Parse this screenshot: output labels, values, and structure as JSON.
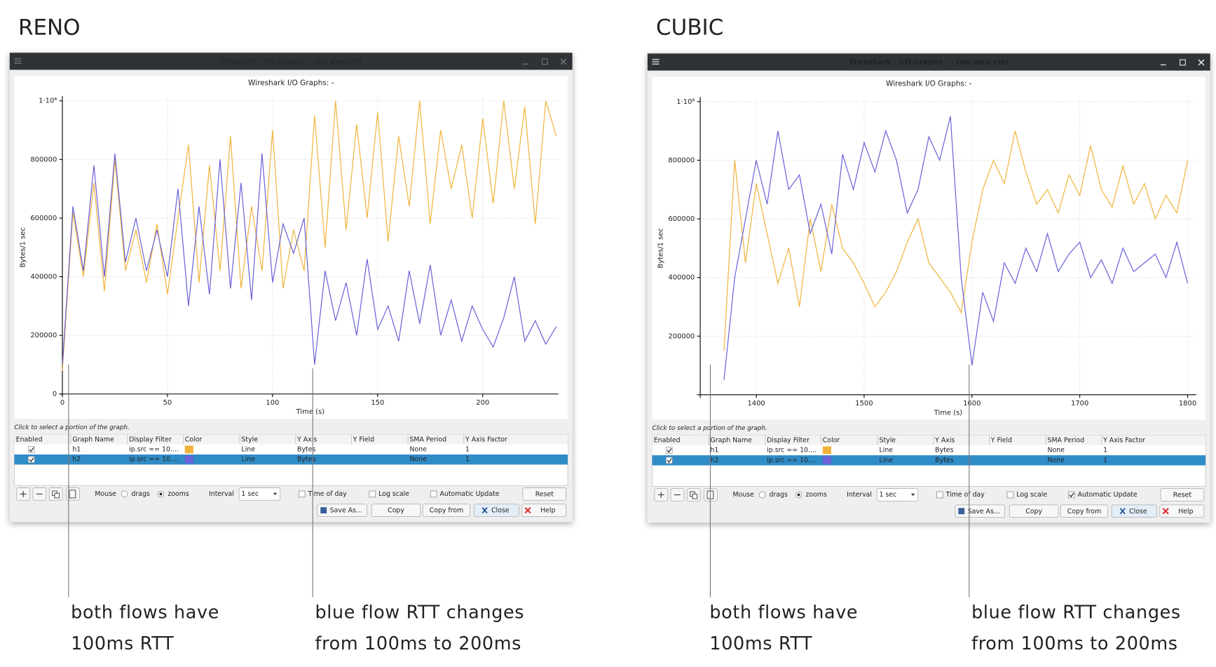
{
  "panels": [
    {
      "heading": "RENO",
      "window_title": "Wireshark · I/O Graphs · - (on alex-vm)",
      "active": false,
      "hint": "Click to select a portion of the graph.",
      "table": {
        "columns": [
          "Enabled",
          "Graph Name",
          "Display Filter",
          "Color",
          "Style",
          "Y Axis",
          "Y Field",
          "SMA Period",
          "Y Axis Factor"
        ],
        "rows": [
          {
            "enabled": true,
            "filter": "ip.src == 10....",
            "style": "Line",
            "y_axis": "Bytes",
            "sma": "None",
            "factor": "1",
            "selected": false
          },
          {
            "enabled": true,
            "filter": "ip.src == 10....",
            "style": "Line",
            "y_axis": "Bytes",
            "sma": "None",
            "factor": "1",
            "selected": true
          }
        ]
      },
      "controls": {
        "mouse": "Mouse",
        "drags": "drags",
        "zooms": "zooms",
        "interval_label": "Interval",
        "interval": "1 sec",
        "time_of_day": "Time of day",
        "log_scale": "Log scale",
        "auto_update": "Automatic Update",
        "auto_update_checked": false,
        "reset": "Reset",
        "save_as": "Save As...",
        "copy": "Copy",
        "copy_from": "Copy from",
        "close": "Close",
        "help": "Help"
      },
      "annotations": [
        [
          "both flows have",
          "100ms RTT"
        ],
        [
          "blue flow RTT changes",
          "from 100ms to 200ms"
        ]
      ]
    },
    {
      "heading": "CUBIC",
      "window_title": "Wireshark · I/O Graphs · - (on alex-vm)",
      "active": true,
      "hint": "Click to select a portion of the graph.",
      "table": {
        "columns": [
          "Enabled",
          "Graph Name",
          "Display Filter",
          "Color",
          "Style",
          "Y Axis",
          "Y Field",
          "SMA Period",
          "Y Axis Factor"
        ],
        "rows": [
          {
            "enabled": true,
            "filter": "ip.src == 10....",
            "style": "Line",
            "y_axis": "Bytes",
            "sma": "None",
            "factor": "1",
            "selected": false
          },
          {
            "enabled": true,
            "filter": "ip.src == 10....",
            "style": "Line",
            "y_axis": "Bytes",
            "sma": "None",
            "factor": "1",
            "selected": true
          }
        ]
      },
      "controls": {
        "mouse": "Mouse",
        "drags": "drags",
        "zooms": "zooms",
        "interval_label": "Interval",
        "interval": "1 sec",
        "time_of_day": "Time of day",
        "log_scale": "Log scale",
        "auto_update": "Automatic Update",
        "auto_update_checked": true,
        "reset": "Reset",
        "save_as": "Save As...",
        "copy": "Copy",
        "copy_from": "Copy from",
        "close": "Close",
        "help": "Help"
      },
      "annotations": [
        [
          "both flows have",
          "100ms RTT"
        ],
        [
          "blue flow RTT changes",
          "from 100ms to 200ms"
        ]
      ]
    }
  ],
  "chart_data": [
    {
      "type": "line",
      "title": "Wireshark I/O Graphs: -",
      "x_label": "Time (s)",
      "y_label": "Bytes/1 sec",
      "grid": true,
      "x": [
        0,
        5,
        10,
        15,
        20,
        25,
        30,
        35,
        40,
        45,
        50,
        55,
        60,
        65,
        70,
        75,
        80,
        85,
        90,
        95,
        100,
        105,
        110,
        115,
        120,
        125,
        130,
        135,
        140,
        145,
        150,
        155,
        160,
        165,
        170,
        175,
        180,
        185,
        190,
        195,
        200,
        205,
        210,
        215,
        220,
        225,
        230,
        235
      ],
      "series": [
        {
          "name": "h1",
          "color": "#f0b43c",
          "values": [
            80000,
            620000,
            400000,
            720000,
            350000,
            800000,
            420000,
            560000,
            380000,
            580000,
            340000,
            600000,
            850000,
            380000,
            780000,
            420000,
            880000,
            360000,
            640000,
            420000,
            900000,
            360000,
            560000,
            420000,
            950000,
            500000,
            1000000,
            560000,
            920000,
            600000,
            960000,
            520000,
            880000,
            640000,
            1000000,
            580000,
            900000,
            700000,
            850000,
            600000,
            940000,
            650000,
            1000000,
            700000,
            980000,
            580000,
            1000000,
            880000
          ]
        },
        {
          "name": "h2",
          "color": "#6a62d8",
          "values": [
            100000,
            640000,
            420000,
            780000,
            400000,
            820000,
            450000,
            600000,
            420000,
            560000,
            400000,
            700000,
            300000,
            640000,
            340000,
            800000,
            360000,
            720000,
            320000,
            820000,
            380000,
            580000,
            480000,
            600000,
            100000,
            420000,
            250000,
            380000,
            200000,
            460000,
            220000,
            300000,
            180000,
            420000,
            240000,
            440000,
            200000,
            320000,
            180000,
            300000,
            220000,
            160000,
            260000,
            400000,
            180000,
            250000,
            170000,
            230000
          ]
        }
      ],
      "xlim": [
        0,
        236
      ],
      "ylim": [
        0,
        1000000
      ],
      "xticks": [
        0,
        50,
        100,
        150,
        200
      ],
      "yticks": [
        0,
        200000,
        400000,
        600000,
        800000,
        {
          "value": 1000000,
          "label": "1·10⁶"
        }
      ]
    },
    {
      "type": "line",
      "title": "Wireshark I/O Graphs: -",
      "x_label": "Time (s)",
      "y_label": "Bytes/1 sec",
      "grid": true,
      "x": [
        1370,
        1380,
        1390,
        1400,
        1410,
        1420,
        1430,
        1440,
        1450,
        1460,
        1470,
        1480,
        1490,
        1500,
        1510,
        1520,
        1530,
        1540,
        1550,
        1560,
        1570,
        1580,
        1590,
        1600,
        1610,
        1620,
        1630,
        1640,
        1650,
        1660,
        1670,
        1680,
        1690,
        1700,
        1710,
        1720,
        1730,
        1740,
        1750,
        1760,
        1770,
        1780,
        1790,
        1800
      ],
      "series": [
        {
          "name": "h1",
          "color": "#f0b43c",
          "values": [
            150000,
            800000,
            450000,
            720000,
            550000,
            380000,
            500000,
            300000,
            600000,
            420000,
            650000,
            500000,
            450000,
            380000,
            300000,
            350000,
            420000,
            520000,
            600000,
            450000,
            400000,
            350000,
            280000,
            520000,
            700000,
            800000,
            720000,
            900000,
            760000,
            650000,
            700000,
            620000,
            750000,
            680000,
            850000,
            700000,
            640000,
            780000,
            650000,
            720000,
            600000,
            680000,
            620000,
            800000
          ]
        },
        {
          "name": "h2",
          "color": "#6a62d8",
          "values": [
            50000,
            400000,
            600000,
            800000,
            650000,
            900000,
            700000,
            750000,
            550000,
            650000,
            480000,
            820000,
            700000,
            860000,
            760000,
            900000,
            800000,
            620000,
            700000,
            880000,
            800000,
            950000,
            400000,
            100000,
            350000,
            250000,
            450000,
            380000,
            500000,
            420000,
            550000,
            420000,
            480000,
            520000,
            400000,
            460000,
            380000,
            500000,
            420000,
            450000,
            480000,
            400000,
            520000,
            380000
          ]
        }
      ],
      "xlim": [
        1348,
        1808
      ],
      "ylim": [
        0,
        1000000
      ],
      "xticks": [
        1400,
        1500,
        1600,
        1700,
        1800
      ],
      "yticks": [
        200000,
        400000,
        600000,
        800000,
        {
          "value": 1000000,
          "label": "1·10⁶"
        }
      ]
    }
  ]
}
